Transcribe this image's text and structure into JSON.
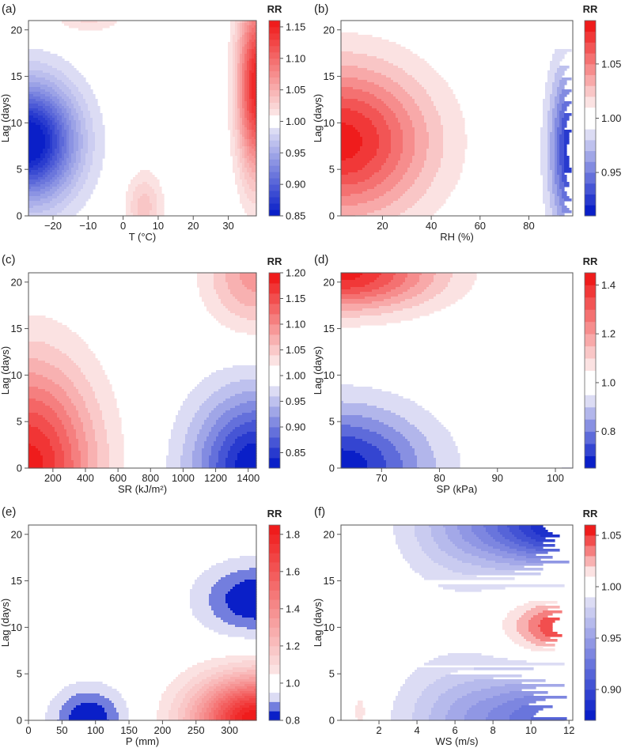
{
  "palette": {
    "blue_dark": "#0a1fc8",
    "blue_light": "#dcdcf4",
    "red_dark": "#ef1c1c",
    "red_light": "#fbe2e2",
    "neutral": "#ffffff"
  },
  "chart_data": [
    {
      "type": "heatmap",
      "tag": "(a)",
      "xlabel": "T (°C)",
      "ylabel": "Lag (days)",
      "xlim": [
        -27,
        38
      ],
      "ylim": [
        0,
        21
      ],
      "xticks": [
        -20,
        -10,
        0,
        10,
        20,
        30
      ],
      "xtick_labels": [
        "−20",
        "−10",
        "0",
        "10",
        "20",
        "30"
      ],
      "yticks": [
        0,
        5,
        10,
        15,
        20
      ],
      "ytick_labels": [
        "0",
        "5",
        "10",
        "15",
        "20"
      ],
      "legend_title": "RR",
      "legend_levels": [
        0.85,
        0.86,
        0.87,
        0.88,
        0.89,
        0.9,
        0.91,
        0.92,
        0.93,
        0.94,
        0.95,
        0.96,
        0.97,
        0.98,
        0.99,
        1.0,
        1.01,
        1.02,
        1.03,
        1.04,
        1.05,
        1.06,
        1.07,
        1.08,
        1.09,
        1.1,
        1.11,
        1.12,
        1.13,
        1.14,
        1.15,
        1.16
      ],
      "legend_ticks": [
        0.85,
        0.9,
        0.95,
        1.0,
        1.05,
        1.1,
        1.15
      ],
      "legend_tick_labels": [
        "0.85",
        "0.90",
        "0.95",
        "1.00",
        "1.05",
        "1.10",
        "1.15"
      ],
      "blobs": [
        {
          "x": -27,
          "y": 8,
          "sx": 13,
          "sy": 6,
          "amp": -0.16
        },
        {
          "x": 38,
          "y": 14,
          "sx": 5,
          "sy": 9,
          "amp": 0.15
        },
        {
          "x": 6,
          "y": 1,
          "sx": 5,
          "sy": 3.5,
          "amp": 0.035
        },
        {
          "x": -10,
          "y": 22,
          "sx": 9,
          "sy": 2,
          "amp": 0.03
        }
      ]
    },
    {
      "type": "heatmap",
      "tag": "(b)",
      "xlabel": "RH (%)",
      "ylabel": "Lag (days)",
      "xlim": [
        3,
        98
      ],
      "ylim": [
        0,
        21
      ],
      "xticks": [
        20,
        40,
        60,
        80
      ],
      "xtick_labels": [
        "20",
        "40",
        "60",
        "80"
      ],
      "yticks": [
        0,
        5,
        10,
        15,
        20
      ],
      "ytick_labels": [
        "0",
        "5",
        "10",
        "15",
        "20"
      ],
      "legend_title": "RR",
      "legend_levels": [
        0.91,
        0.92,
        0.93,
        0.94,
        0.95,
        0.96,
        0.97,
        0.98,
        0.99,
        1.0,
        1.01,
        1.02,
        1.03,
        1.04,
        1.05,
        1.06,
        1.07,
        1.08,
        1.09
      ],
      "legend_ticks": [
        0.95,
        1.0,
        1.05
      ],
      "legend_tick_labels": [
        "0.95",
        "1.00",
        "1.05"
      ],
      "blobs": [
        {
          "x": 3,
          "y": 8,
          "sx": 35,
          "sy": 8,
          "amp": 0.085
        },
        {
          "x": 98,
          "y": 7,
          "sx": 9,
          "sy": 9,
          "amp": -0.085
        }
      ]
    },
    {
      "type": "heatmap",
      "tag": "(c)",
      "xlabel": "SR (kJ/m²)",
      "ylabel": "Lag (days)",
      "xlim": [
        50,
        1450
      ],
      "ylim": [
        0,
        21
      ],
      "xticks": [
        200,
        400,
        600,
        800,
        1000,
        1200,
        1400
      ],
      "xtick_labels": [
        "200",
        "400",
        "600",
        "800",
        "1000",
        "1200",
        "1400"
      ],
      "yticks": [
        0,
        5,
        10,
        15,
        20
      ],
      "ytick_labels": [
        "0",
        "5",
        "10",
        "15",
        "20"
      ],
      "legend_title": "RR",
      "legend_levels": [
        0.82,
        0.84,
        0.86,
        0.88,
        0.9,
        0.92,
        0.94,
        0.96,
        0.98,
        1.0,
        1.02,
        1.04,
        1.06,
        1.08,
        1.1,
        1.12,
        1.14,
        1.16,
        1.18,
        1.2
      ],
      "legend_ticks": [
        0.85,
        0.9,
        0.95,
        1.0,
        1.05,
        1.1,
        1.15,
        1.2
      ],
      "legend_tick_labels": [
        "0.85",
        "0.90",
        "0.95",
        "1.00",
        "1.05",
        "1.10",
        "1.15",
        "1.20"
      ],
      "blobs": [
        {
          "x": 50,
          "y": 0,
          "sx": 400,
          "sy": 11,
          "amp": 0.19
        },
        {
          "x": 1450,
          "y": 0,
          "sx": 380,
          "sy": 8,
          "amp": -0.18
        },
        {
          "x": 1450,
          "y": 21,
          "sx": 300,
          "sy": 6,
          "amp": 0.09
        }
      ]
    },
    {
      "type": "heatmap",
      "tag": "(d)",
      "xlabel": "SP (kPa)",
      "ylabel": "Lag (days)",
      "xlim": [
        63,
        103
      ],
      "ylim": [
        0,
        21
      ],
      "xticks": [
        70,
        80,
        90,
        100
      ],
      "xtick_labels": [
        "70",
        "80",
        "90",
        "100"
      ],
      "yticks": [
        0,
        5,
        10,
        15,
        20
      ],
      "ytick_labels": [
        "0",
        "5",
        "10",
        "15",
        "20"
      ],
      "legend_title": "RR",
      "legend_levels": [
        0.65,
        0.7,
        0.75,
        0.8,
        0.85,
        0.9,
        0.95,
        1.0,
        1.05,
        1.1,
        1.15,
        1.2,
        1.25,
        1.3,
        1.35,
        1.4,
        1.45
      ],
      "legend_ticks": [
        0.8,
        1.0,
        1.2,
        1.4
      ],
      "legend_tick_labels": [
        "0.8",
        "1.0",
        "1.2",
        "1.4"
      ],
      "blobs": [
        {
          "x": 63,
          "y": 21,
          "sx": 16,
          "sy": 4,
          "amp": 0.42
        },
        {
          "x": 63,
          "y": 0,
          "sx": 15,
          "sy": 6.5,
          "amp": -0.33
        },
        {
          "x": 103,
          "y": 0,
          "sx": 2.5,
          "sy": 3.5,
          "amp": -0.1
        }
      ]
    },
    {
      "type": "heatmap",
      "tag": "(e)",
      "xlabel": "P (mm)",
      "ylabel": "Lag (days)",
      "xlim": [
        0,
        340
      ],
      "ylim": [
        0,
        21
      ],
      "xticks": [
        0,
        50,
        100,
        150,
        200,
        250,
        300
      ],
      "xtick_labels": [
        "0",
        "50",
        "100",
        "150",
        "200",
        "250",
        "300"
      ],
      "yticks": [
        0,
        5,
        10,
        15,
        20
      ],
      "ytick_labels": [
        "0",
        "5",
        "10",
        "15",
        "20"
      ],
      "legend_title": "RR",
      "legend_levels": [
        0.8,
        0.85,
        0.9,
        0.95,
        1.0,
        1.05,
        1.1,
        1.15,
        1.2,
        1.25,
        1.3,
        1.35,
        1.4,
        1.45,
        1.5,
        1.55,
        1.6,
        1.65,
        1.7,
        1.75,
        1.8,
        1.85
      ],
      "legend_ticks": [
        0.8,
        1.0,
        1.2,
        1.4,
        1.6,
        1.8
      ],
      "legend_tick_labels": [
        "0.8",
        "1.0",
        "1.2",
        "1.4",
        "1.6",
        "1.8"
      ],
      "blobs": [
        {
          "x": 340,
          "y": 13,
          "sx": 85,
          "sy": 4,
          "amp": -0.2
        },
        {
          "x": 90,
          "y": 0,
          "sx": 55,
          "sy": 3.6,
          "amp": -0.2
        },
        {
          "x": 340,
          "y": 0,
          "sx": 90,
          "sy": 4.5,
          "amp": 0.85
        }
      ]
    },
    {
      "type": "heatmap",
      "tag": "(f)",
      "xlabel": "WS (m/s)",
      "ylabel": "Lag (days)",
      "xlim": [
        0,
        12.2
      ],
      "ylim": [
        0,
        21
      ],
      "xticks": [
        2,
        4,
        6,
        8,
        10,
        12
      ],
      "xtick_labels": [
        "2",
        "4",
        "6",
        "8",
        "10",
        "12"
      ],
      "yticks": [
        0,
        5,
        10,
        15,
        20
      ],
      "ytick_labels": [
        "0",
        "5",
        "10",
        "15",
        "20"
      ],
      "legend_title": "RR",
      "legend_levels": [
        0.87,
        0.88,
        0.89,
        0.9,
        0.91,
        0.92,
        0.93,
        0.94,
        0.95,
        0.96,
        0.97,
        0.98,
        0.99,
        1.0,
        1.01,
        1.02,
        1.03,
        1.04,
        1.05,
        1.06
      ],
      "legend_ticks": [
        0.9,
        0.95,
        1.0,
        1.05
      ],
      "legend_tick_labels": [
        "0.90",
        "0.95",
        "1.00",
        "1.05"
      ],
      "blobs": [
        {
          "x": 12.2,
          "y": 21,
          "sx": 5,
          "sy": 4.5,
          "amp": -0.13
        },
        {
          "x": 12.2,
          "y": 0,
          "sx": 5.5,
          "sy": 5,
          "amp": -0.09
        },
        {
          "x": 12.2,
          "y": 10,
          "sx": 3,
          "sy": 3,
          "amp": 0.06
        },
        {
          "x": 6,
          "y": 0,
          "sx": 3,
          "sy": 7,
          "amp": -0.02
        },
        {
          "x": 6,
          "y": 21,
          "sx": 3,
          "sy": 7,
          "amp": -0.02
        },
        {
          "x": 1,
          "y": 1,
          "sx": 0.35,
          "sy": 2,
          "amp": 0.018
        }
      ]
    }
  ]
}
